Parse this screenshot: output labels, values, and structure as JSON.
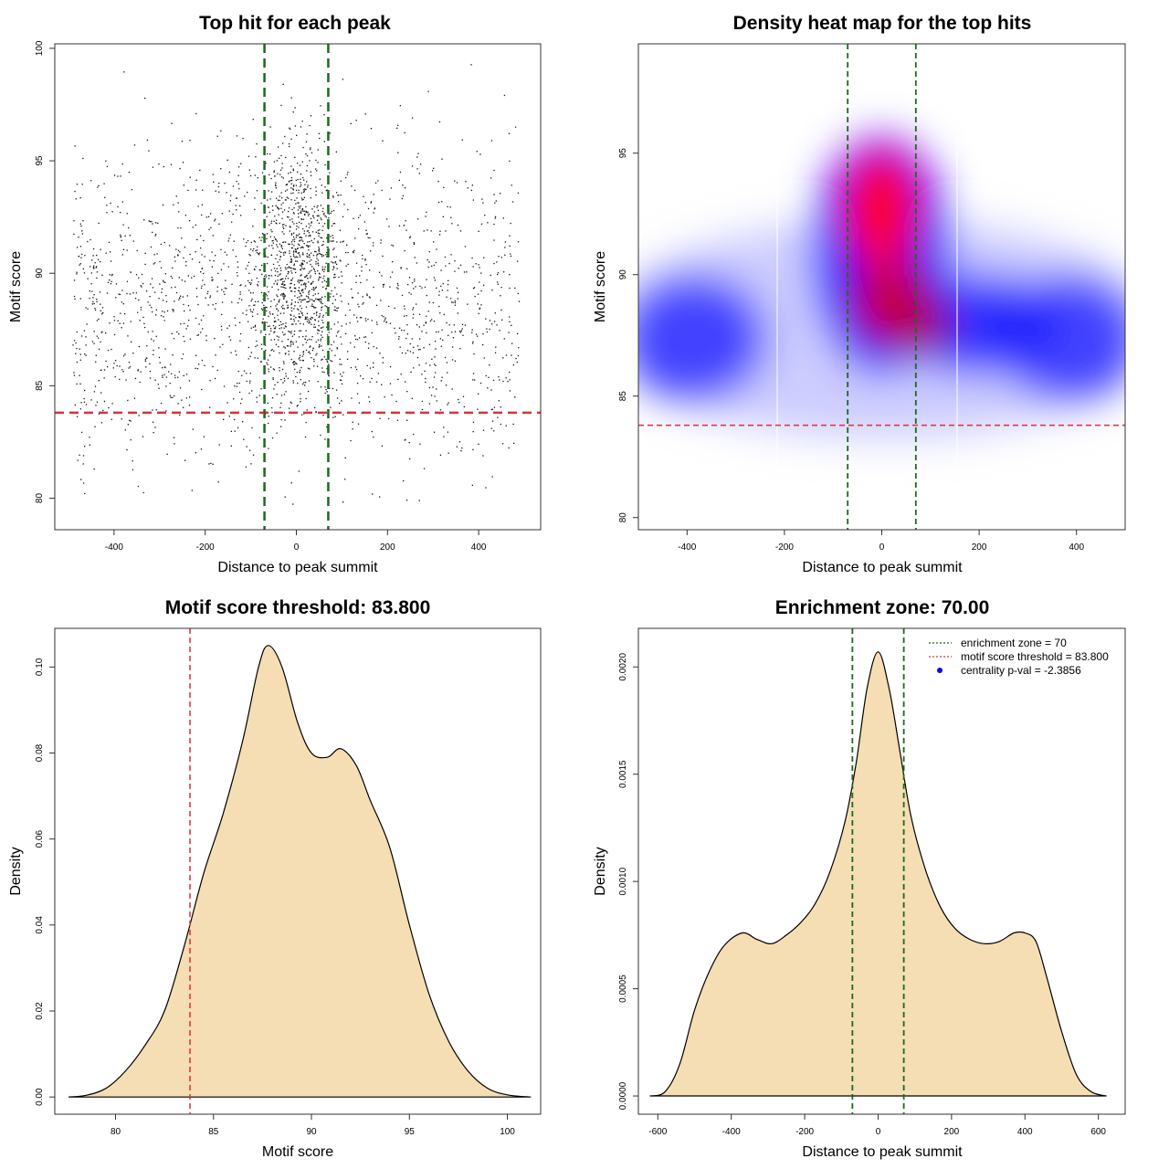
{
  "colors": {
    "fill": "#f5deb3",
    "green_line": "#1a6b1a",
    "red_line": "#e03030",
    "heat_low": "#ffffff",
    "heat_mid": "#0000ff",
    "heat_high": "#ff0000"
  },
  "chart_data": [
    {
      "type": "scatter",
      "title": "Top hit for each peak",
      "xlabel": "Distance to peak summit",
      "ylabel": "Motif score",
      "xlim": [
        -530,
        536
      ],
      "ylim": [
        78.6,
        100.2
      ],
      "xticks": [
        -400,
        -200,
        0,
        200,
        400
      ],
      "yticks": [
        80,
        85,
        90,
        95,
        100
      ],
      "xtick_labels": [
        "-400",
        "-200",
        "0",
        "200",
        "400"
      ],
      "ytick_labels": [
        "80",
        "85",
        "90",
        "95",
        "100"
      ],
      "vlines": [
        -70,
        70
      ],
      "hline": 83.8,
      "points_description_note": "",
      "point_count": 2600
    },
    {
      "type": "heatmap",
      "title": "Density heat map for the top hits",
      "xlabel": "Distance to peak summit",
      "ylabel": "Motif score",
      "xlim": [
        -500,
        500
      ],
      "ylim": [
        79.5,
        99.5
      ],
      "xticks": [
        -400,
        -200,
        0,
        200,
        400
      ],
      "yticks": [
        80,
        85,
        90,
        95
      ],
      "xtick_labels": [
        "-400",
        "-200",
        "0",
        "200",
        "400"
      ],
      "ytick_labels": [
        "80",
        "85",
        "90",
        "95"
      ],
      "vlines": [
        -70,
        70
      ],
      "white_vlines": [
        -210,
        155
      ],
      "hline": 83.8
    },
    {
      "type": "area",
      "title": "Motif score threshold: 83.800",
      "xlabel": "Motif score",
      "ylabel": "Density",
      "xlim": [
        76.9,
        101.7
      ],
      "ylim": [
        -0.004,
        0.109
      ],
      "xticks": [
        80,
        85,
        90,
        95,
        100
      ],
      "yticks": [
        0.0,
        0.02,
        0.04,
        0.06,
        0.08,
        0.1
      ],
      "xtick_labels": [
        "80",
        "85",
        "90",
        "95",
        "100"
      ],
      "ytick_labels": [
        "0.00",
        "0.02",
        "0.04",
        "0.06",
        "0.08",
        "0.10"
      ],
      "vline": 83.8,
      "x": [
        77.6,
        78.5,
        79.5,
        80.5,
        81.5,
        82.5,
        83.5,
        84.5,
        85.5,
        86.5,
        87.3,
        87.8,
        88.5,
        89.3,
        90.0,
        90.8,
        91.5,
        92.3,
        93.0,
        94.0,
        95.0,
        96.0,
        97.0,
        98.0,
        99.0,
        100.0,
        101.2
      ],
      "y": [
        0.0,
        0.0004,
        0.002,
        0.006,
        0.012,
        0.02,
        0.035,
        0.052,
        0.066,
        0.083,
        0.1,
        0.105,
        0.1,
        0.087,
        0.08,
        0.079,
        0.081,
        0.077,
        0.069,
        0.058,
        0.04,
        0.024,
        0.013,
        0.006,
        0.002,
        0.0005,
        0.0
      ]
    },
    {
      "type": "area",
      "title": "Enrichment zone: 70.00",
      "xlabel": "Distance to peak summit",
      "ylabel": "Density",
      "xlim": [
        -653,
        673
      ],
      "ylim": [
        -8.5e-05,
        0.00218
      ],
      "xticks": [
        -600,
        -400,
        -200,
        0,
        200,
        400,
        600
      ],
      "yticks": [
        0.0,
        0.0005,
        0.001,
        0.0015,
        0.002
      ],
      "xtick_labels": [
        "-600",
        "-400",
        "-200",
        "0",
        "200",
        "400",
        "600"
      ],
      "ytick_labels": [
        "0.0000",
        "0.0005",
        "0.0010",
        "0.0015",
        "0.0020"
      ],
      "vlines": [
        -70,
        70
      ],
      "x": [
        -622,
        -580,
        -540,
        -500,
        -460,
        -420,
        -370,
        -330,
        -290,
        -250,
        -210,
        -170,
        -130,
        -90,
        -60,
        -30,
        0,
        30,
        60,
        90,
        130,
        170,
        210,
        250,
        290,
        330,
        370,
        400,
        430,
        460,
        500,
        540,
        580,
        622
      ],
      "y": [
        0.0,
        2e-05,
        0.00015,
        0.0004,
        0.00058,
        0.0007,
        0.00076,
        0.00073,
        0.00071,
        0.00075,
        0.00081,
        0.0009,
        0.00105,
        0.00128,
        0.00155,
        0.0019,
        0.00207,
        0.0019,
        0.0016,
        0.0013,
        0.00105,
        0.00088,
        0.00078,
        0.00073,
        0.00071,
        0.00072,
        0.00076,
        0.00076,
        0.00072,
        0.00055,
        0.0003,
        0.0001,
        2e-05,
        0.0
      ],
      "legend": {
        "position": "top-right",
        "entries": [
          {
            "label": "enrichment zone = 70",
            "style": "dotted",
            "color": "#1a6b1a"
          },
          {
            "label": "motif score threshold = 83.800",
            "style": "dotted",
            "color": "#e03030"
          },
          {
            "label": "centrality p-val = -2.3856",
            "style": "point",
            "color": "#0000ff"
          }
        ]
      }
    }
  ]
}
